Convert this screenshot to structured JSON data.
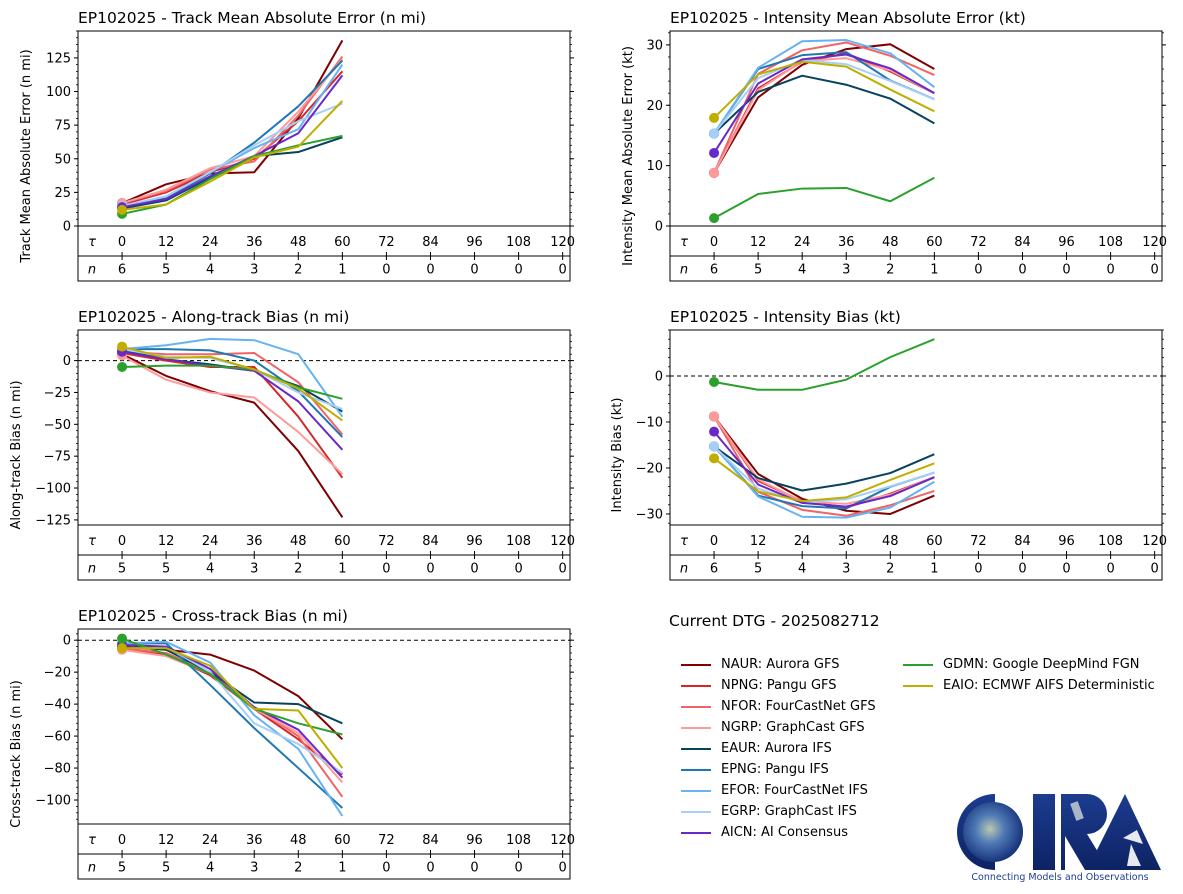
{
  "figure": {
    "dtg_label": "Current DTG - 2025082712",
    "logo": {
      "text": "CIRA",
      "tagline": "Connecting Models and Observations"
    }
  },
  "legend": {
    "items": [
      {
        "id": "NAUR",
        "label": "NAUR: Aurora GFS",
        "color": "#7f0000"
      },
      {
        "id": "NPNG",
        "label": "NPNG: Pangu GFS",
        "color": "#d62728"
      },
      {
        "id": "NFOR",
        "label": "NFOR: FourCastNet GFS",
        "color": "#f26464"
      },
      {
        "id": "NGRP",
        "label": "NGRP: GraphCast GFS",
        "color": "#ff9a9a"
      },
      {
        "id": "EAUR",
        "label": "EAUR: Aurora IFS",
        "color": "#08435e"
      },
      {
        "id": "EPNG",
        "label": "EPNG: Pangu IFS",
        "color": "#1f77b4"
      },
      {
        "id": "EFOR",
        "label": "EFOR: FourCastNet IFS",
        "color": "#66b2f2"
      },
      {
        "id": "EGRP",
        "label": "EGRP: GraphCast IFS",
        "color": "#a6cff7"
      },
      {
        "id": "AICN",
        "label": "AICN: AI Consensus",
        "color": "#6a28c8"
      },
      {
        "id": "GDMN",
        "label": "GDMN: Google DeepMind FGN",
        "color": "#2ca02c"
      },
      {
        "id": "EAIO",
        "label": "EAIO: ECMWF AIFS Deterministic",
        "color": "#bfae00"
      }
    ]
  },
  "chart_data": [
    {
      "type": "line",
      "title": "EP102025 - Track Mean Absolute Error (n mi)",
      "xlabel": "",
      "ylabel": "Track Mean Absolute Error (n mi)",
      "x": [
        0,
        12,
        24,
        36,
        48,
        60
      ],
      "ylim": [
        0,
        145
      ],
      "xlim": [
        -12,
        122
      ],
      "yticks": [
        0,
        25,
        50,
        75,
        100,
        125
      ],
      "zero_line": false,
      "tau_label": "τ",
      "n_label": "n",
      "tau": [
        "0",
        "12",
        "24",
        "36",
        "48",
        "60",
        "72",
        "84",
        "96",
        "108",
        "120"
      ],
      "n": [
        "6",
        "5",
        "4",
        "3",
        "2",
        "1",
        "0",
        "0",
        "0",
        "0",
        "0"
      ],
      "series": [
        {
          "name": "NAUR",
          "values": [
            17,
            31,
            39,
            40,
            80,
            138
          ]
        },
        {
          "name": "NPNG",
          "values": [
            16,
            25,
            40,
            50,
            78,
            115
          ]
        },
        {
          "name": "NFOR",
          "values": [
            17,
            26,
            42,
            48,
            82,
            126
          ]
        },
        {
          "name": "NGRP",
          "values": [
            17,
            27,
            43,
            52,
            85,
            124
          ]
        },
        {
          "name": "EAUR",
          "values": [
            13,
            19,
            36,
            52,
            55,
            66
          ]
        },
        {
          "name": "EPNG",
          "values": [
            14,
            21,
            39,
            62,
            89,
            123
          ]
        },
        {
          "name": "EFOR",
          "values": [
            15,
            22,
            40,
            58,
            72,
            120
          ]
        },
        {
          "name": "EGRP",
          "values": [
            15,
            22,
            40,
            60,
            78,
            91
          ]
        },
        {
          "name": "AICN",
          "values": [
            14,
            20,
            37,
            52,
            69,
            112
          ]
        },
        {
          "name": "GDMN",
          "values": [
            9,
            16,
            35,
            52,
            60,
            67
          ]
        },
        {
          "name": "EAIO",
          "values": [
            12,
            16,
            33,
            51,
            59,
            93
          ]
        }
      ]
    },
    {
      "type": "line",
      "title": "EP102025 - Intensity Mean Absolute Error (kt)",
      "xlabel": "",
      "ylabel": "Intensity Mean Absolute Error (kt)",
      "x": [
        0,
        12,
        24,
        36,
        48,
        60
      ],
      "ylim": [
        0,
        32.3
      ],
      "xlim": [
        -12,
        122
      ],
      "yticks": [
        0,
        10,
        20,
        30
      ],
      "zero_line": false,
      "tau_label": "τ",
      "n_label": "n",
      "tau": [
        "0",
        "12",
        "24",
        "36",
        "48",
        "60",
        "72",
        "84",
        "96",
        "108",
        "120"
      ],
      "n": [
        "6",
        "5",
        "4",
        "3",
        "2",
        "1",
        "0",
        "0",
        "0",
        "0",
        "0"
      ],
      "series": [
        {
          "name": "NAUR",
          "values": [
            8.8,
            21.3,
            26.7,
            29.3,
            30.1,
            26.0
          ]
        },
        {
          "name": "NPNG",
          "values": [
            8.8,
            22.8,
            27.2,
            28.6,
            25.6,
            22.0
          ]
        },
        {
          "name": "NFOR",
          "values": [
            8.8,
            25.2,
            29.1,
            30.4,
            28.2,
            25.0
          ]
        },
        {
          "name": "NGRP",
          "values": [
            8.8,
            22.5,
            27.3,
            27.8,
            25.8,
            22.0
          ]
        },
        {
          "name": "EAUR",
          "values": [
            15.3,
            22.2,
            24.9,
            23.4,
            21.1,
            17.0
          ]
        },
        {
          "name": "EPNG",
          "values": [
            15.3,
            26.0,
            28.3,
            28.8,
            24.1,
            21.0
          ]
        },
        {
          "name": "EFOR",
          "values": [
            15.3,
            26.2,
            30.6,
            30.8,
            28.6,
            23.0
          ]
        },
        {
          "name": "EGRP",
          "values": [
            15.3,
            24.5,
            27.5,
            26.8,
            24.0,
            21.0
          ]
        },
        {
          "name": "AICN",
          "values": [
            12.1,
            23.6,
            27.6,
            28.4,
            26.1,
            22.0
          ]
        },
        {
          "name": "GDMN",
          "values": [
            1.3,
            5.3,
            6.2,
            6.3,
            4.1,
            8.0
          ]
        },
        {
          "name": "EAIO",
          "values": [
            17.9,
            25.1,
            27.2,
            26.4,
            22.6,
            19.0
          ]
        }
      ]
    },
    {
      "type": "line",
      "title": "EP102025 - Along-track Bias (n mi)",
      "xlabel": "",
      "ylabel": "Along-track Bias (n mi)",
      "x": [
        0,
        12,
        24,
        36,
        48,
        60
      ],
      "ylim": [
        -129,
        24
      ],
      "xlim": [
        -12,
        122
      ],
      "yticks": [
        -125,
        -100,
        -75,
        -50,
        -25,
        0
      ],
      "zero_line": true,
      "tau_label": "τ",
      "n_label": "n",
      "tau": [
        "0",
        "12",
        "24",
        "36",
        "48",
        "60",
        "72",
        "84",
        "96",
        "108",
        "120"
      ],
      "n": [
        "5",
        "5",
        "4",
        "3",
        "2",
        "1",
        "0",
        "0",
        "0",
        "0",
        "0"
      ],
      "series": [
        {
          "name": "NAUR",
          "values": [
            5,
            -12,
            -24,
            -33,
            -71,
            -123
          ]
        },
        {
          "name": "NPNG",
          "values": [
            6,
            0,
            -5,
            -5,
            -44,
            -92
          ]
        },
        {
          "name": "NFOR",
          "values": [
            7,
            5,
            5,
            6,
            -17,
            -58
          ]
        },
        {
          "name": "NGRP",
          "values": [
            4,
            -15,
            -25,
            -29,
            -56,
            -89
          ]
        },
        {
          "name": "EAUR",
          "values": [
            8,
            1,
            -3,
            -8,
            -20,
            -40
          ]
        },
        {
          "name": "EPNG",
          "values": [
            9,
            9,
            8,
            0,
            -24,
            -60
          ]
        },
        {
          "name": "EFOR",
          "values": [
            9,
            12,
            17,
            16,
            5,
            -44
          ]
        },
        {
          "name": "EGRP",
          "values": [
            9,
            3,
            2,
            -7,
            -25,
            -38
          ]
        },
        {
          "name": "AICN",
          "values": [
            7,
            1,
            -4,
            -8,
            -32,
            -70
          ]
        },
        {
          "name": "GDMN",
          "values": [
            -5,
            -4,
            -4,
            -7,
            -21,
            -30
          ]
        },
        {
          "name": "EAIO",
          "values": [
            11,
            2,
            3,
            -7,
            -22,
            -47
          ]
        }
      ]
    },
    {
      "type": "line",
      "title": "EP102025 - Intensity Bias (kt)",
      "xlabel": "",
      "ylabel": "Intensity Bias (kt)",
      "x": [
        0,
        12,
        24,
        36,
        48,
        60
      ],
      "ylim": [
        -32.4,
        10
      ],
      "xlim": [
        -12,
        122
      ],
      "yticks": [
        -30,
        -20,
        -10,
        0
      ],
      "zero_line": true,
      "tau_label": "τ",
      "n_label": "n",
      "tau": [
        "0",
        "12",
        "24",
        "36",
        "48",
        "60",
        "72",
        "84",
        "96",
        "108",
        "120"
      ],
      "n": [
        "6",
        "5",
        "4",
        "3",
        "2",
        "1",
        "0",
        "0",
        "0",
        "0",
        "0"
      ],
      "series": [
        {
          "name": "NAUR",
          "values": [
            -8.8,
            -21.3,
            -26.7,
            -29.3,
            -30.0,
            -26.0
          ]
        },
        {
          "name": "NPNG",
          "values": [
            -8.8,
            -22.8,
            -27.2,
            -28.6,
            -25.6,
            -22.0
          ]
        },
        {
          "name": "NFOR",
          "values": [
            -8.8,
            -25.2,
            -29.1,
            -30.4,
            -28.1,
            -25.0
          ]
        },
        {
          "name": "NGRP",
          "values": [
            -8.8,
            -22.5,
            -27.3,
            -27.8,
            -25.8,
            -22.0
          ]
        },
        {
          "name": "EAUR",
          "values": [
            -15.3,
            -22.2,
            -24.9,
            -23.4,
            -21.1,
            -17.0
          ]
        },
        {
          "name": "EPNG",
          "values": [
            -15.3,
            -26.0,
            -28.3,
            -28.8,
            -24.1,
            -21.0
          ]
        },
        {
          "name": "EFOR",
          "values": [
            -15.3,
            -26.2,
            -30.6,
            -30.8,
            -28.6,
            -23.0
          ]
        },
        {
          "name": "EGRP",
          "values": [
            -15.3,
            -24.5,
            -27.5,
            -26.8,
            -24.0,
            -21.0
          ]
        },
        {
          "name": "AICN",
          "values": [
            -12.1,
            -23.6,
            -27.6,
            -28.4,
            -26.1,
            -22.0
          ]
        },
        {
          "name": "GDMN",
          "values": [
            -1.3,
            -3.0,
            -3.0,
            -0.8,
            4.1,
            8.0
          ]
        },
        {
          "name": "EAIO",
          "values": [
            -17.9,
            -25.1,
            -27.2,
            -26.4,
            -22.6,
            -19.0
          ]
        }
      ]
    },
    {
      "type": "line",
      "title": "EP102025 - Cross-track Bias (n mi)",
      "xlabel": "",
      "ylabel": "Cross-track Bias (n mi)",
      "x": [
        0,
        12,
        24,
        36,
        48,
        60
      ],
      "ylim": [
        -115,
        7
      ],
      "xlim": [
        -12,
        122
      ],
      "yticks": [
        -100,
        -80,
        -60,
        -40,
        -20,
        0
      ],
      "zero_line": true,
      "tau_label": "τ",
      "n_label": "n",
      "tau": [
        "0",
        "12",
        "24",
        "36",
        "48",
        "60",
        "72",
        "84",
        "96",
        "108",
        "120"
      ],
      "n": [
        "5",
        "5",
        "4",
        "3",
        "2",
        "1",
        "0",
        "0",
        "0",
        "0",
        "0"
      ],
      "series": [
        {
          "name": "NAUR",
          "values": [
            -4,
            -6,
            -9,
            -19,
            -35,
            -62
          ]
        },
        {
          "name": "NPNG",
          "values": [
            -5,
            -9,
            -22,
            -43,
            -62,
            -84
          ]
        },
        {
          "name": "NFOR",
          "values": [
            -5,
            -8,
            -20,
            -42,
            -60,
            -98
          ]
        },
        {
          "name": "NGRP",
          "values": [
            -6,
            -10,
            -21,
            -43,
            -58,
            -89
          ]
        },
        {
          "name": "EAUR",
          "values": [
            -3,
            -6,
            -20,
            -39,
            -40,
            -52
          ]
        },
        {
          "name": "EPNG",
          "values": [
            -2,
            -2,
            -28,
            -55,
            -80,
            -105
          ]
        },
        {
          "name": "EFOR",
          "values": [
            -2,
            -1,
            -14,
            -47,
            -68,
            -110
          ]
        },
        {
          "name": "EGRP",
          "values": [
            -3,
            -4,
            -20,
            -52,
            -65,
            -83
          ]
        },
        {
          "name": "AICN",
          "values": [
            -3,
            -4,
            -18,
            -42,
            -56,
            -86
          ]
        },
        {
          "name": "GDMN",
          "values": [
            1,
            -9,
            -21,
            -43,
            -52,
            -59
          ]
        },
        {
          "name": "EAIO",
          "values": [
            -5,
            -5,
            -16,
            -43,
            -44,
            -80
          ]
        }
      ]
    }
  ]
}
